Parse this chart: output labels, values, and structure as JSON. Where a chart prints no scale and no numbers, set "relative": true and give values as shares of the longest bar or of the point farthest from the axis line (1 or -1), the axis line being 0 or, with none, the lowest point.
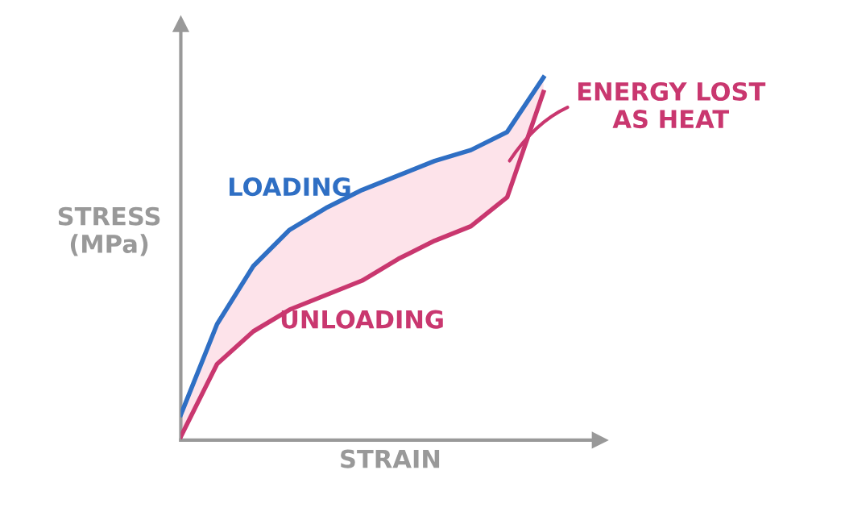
{
  "chart_data": {
    "type": "line",
    "relative": true,
    "xlabel": "STRAIN",
    "ylabel": "STRESS\n(MPa)",
    "categories": [
      null,
      null,
      null,
      null,
      null,
      null,
      null,
      null,
      null,
      null,
      null
    ],
    "series": [
      {
        "name": "LOADING",
        "color": "#2f6fc4",
        "values": [
          0.07,
          0.32,
          0.48,
          0.58,
          0.64,
          0.69,
          0.73,
          0.77,
          0.8,
          0.85,
          1.0
        ],
        "lower": [
          0.01,
          0.21,
          0.3,
          0.36,
          0.4,
          0.44,
          0.5,
          0.55,
          0.59,
          0.67,
          0.96
        ],
        "upper": [
          0.07,
          0.32,
          0.48,
          0.58,
          0.64,
          0.69,
          0.73,
          0.77,
          0.8,
          0.85,
          1.0
        ]
      },
      {
        "name": "UNLOADING",
        "color": "#c9376f",
        "values": [
          0.01,
          0.21,
          0.3,
          0.36,
          0.4,
          0.44,
          0.5,
          0.55,
          0.59,
          0.67,
          0.96
        ]
      }
    ],
    "annotations": [
      "ENERGY LOST\nAS HEAT"
    ],
    "legend": false,
    "marker": "none",
    "line_style": "solid"
  }
}
